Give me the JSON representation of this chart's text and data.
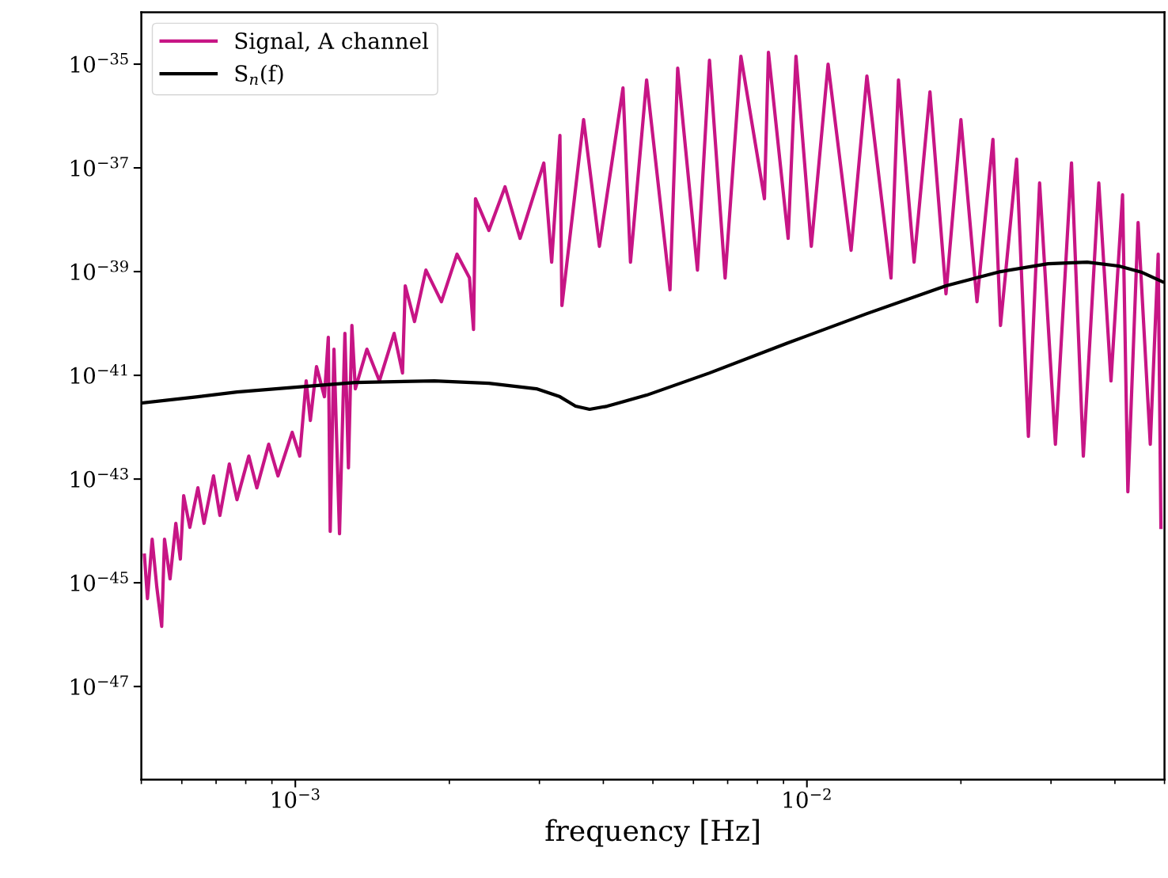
{
  "chart_data": {
    "type": "line",
    "xlabel": "frequency [Hz]",
    "log": "xy",
    "xlim": [
      0.0005,
      0.05
    ],
    "ylim": [
      1.6e-49,
      1e-34
    ],
    "xticks": [
      {
        "value": 0.001,
        "label": "10$^{−3}$"
      },
      {
        "value": 0.01,
        "label": "10$^{−2}$"
      }
    ],
    "yticks": [
      {
        "value": 1e-47,
        "label": "10$^{−47}$"
      },
      {
        "value": 1e-45,
        "label": "10$^{−45}$"
      },
      {
        "value": 1e-43,
        "label": "10$^{−43}$"
      },
      {
        "value": 1e-41,
        "label": "10$^{−41}$"
      },
      {
        "value": 1e-39,
        "label": "10$^{−39}$"
      },
      {
        "value": 1e-37,
        "label": "10$^{−37}$"
      },
      {
        "value": 1e-35,
        "label": "10$^{−35}$"
      }
    ],
    "legend": "top left",
    "marker": "none",
    "line_style": "solid",
    "series": [
      {
        "name": "Signal, A channel",
        "color": "#c71585",
        "x": [
          0.000507,
          0.000514,
          0.000525,
          0.000536,
          0.000548,
          0.000555,
          0.000569,
          0.000584,
          0.000596,
          0.000605,
          0.000622,
          0.000645,
          0.000663,
          0.000692,
          0.000712,
          0.000743,
          0.000769,
          0.000811,
          0.000841,
          0.000887,
          0.000925,
          0.000986,
          0.00102,
          0.00105,
          0.00107,
          0.0011,
          0.00114,
          0.00116,
          0.00117,
          0.00119,
          0.00122,
          0.00125,
          0.00127,
          0.00129,
          0.00131,
          0.00138,
          0.00146,
          0.00156,
          0.00162,
          0.00164,
          0.00171,
          0.0018,
          0.00193,
          0.00207,
          0.00219,
          0.00223,
          0.00225,
          0.00239,
          0.00257,
          0.00275,
          0.00306,
          0.00317,
          0.00329,
          0.00332,
          0.00366,
          0.00393,
          0.00437,
          0.00452,
          0.00486,
          0.0054,
          0.00559,
          0.00611,
          0.00645,
          0.00692,
          0.00743,
          0.00826,
          0.00841,
          0.00919,
          0.00952,
          0.0102,
          0.011,
          0.0122,
          0.0131,
          0.0146,
          0.0151,
          0.0162,
          0.0174,
          0.0187,
          0.02,
          0.0215,
          0.0231,
          0.0239,
          0.0257,
          0.0271,
          0.0285,
          0.0306,
          0.0329,
          0.0347,
          0.0372,
          0.0393,
          0.0414,
          0.0424,
          0.0444,
          0.0469,
          0.0486,
          0.0492
        ],
        "values": [
          3.42e-45,
          4.95e-46,
          6.92e-45,
          8.39e-46,
          1.45e-46,
          6.92e-45,
          1.19e-45,
          1.4e-44,
          2.87e-45,
          4.78e-44,
          1.17e-44,
          6.79e-44,
          1.4e-44,
          1.15e-43,
          1.99e-44,
          1.95e-43,
          4.01e-44,
          2.77e-43,
          6.79e-44,
          4.7e-43,
          1.15e-43,
          7.96e-43,
          2.77e-43,
          7.82e-42,
          1.35e-42,
          1.47e-41,
          3.87e-42,
          5.41e-41,
          9.82e-45,
          3.19e-41,
          8.85e-45,
          6.44e-41,
          1.64e-43,
          9.16e-41,
          5.5e-42,
          3.19e-41,
          7.82e-42,
          6.44e-41,
          1.11e-41,
          5.31e-40,
          1.09e-40,
          1.07e-39,
          2.63e-40,
          2.17e-39,
          7.55e-40,
          7.67e-41,
          2.54e-38,
          6.22e-39,
          4.31e-38,
          4.38e-39,
          1.24e-37,
          1.52e-39,
          4.23e-37,
          2.21e-40,
          8.53e-37,
          3.08e-39,
          3.48e-36,
          1.52e-39,
          4.95e-36,
          4.46e-40,
          8.39e-36,
          1.07e-39,
          1.19e-35,
          7.55e-40,
          1.42e-35,
          2.54e-38,
          1.69e-35,
          4.38e-39,
          1.42e-35,
          3.08e-39,
          1e-35,
          2.58e-39,
          5.9e-36,
          7.55e-40,
          4.95e-36,
          1.52e-39,
          2.92e-36,
          3.74e-40,
          8.53e-37,
          2.63e-40,
          3.55e-37,
          9.16e-41,
          1.47e-37,
          6.67e-43,
          5.13e-38,
          4.7e-43,
          1.24e-37,
          2.77e-43,
          5.13e-38,
          7.82e-42,
          3.03e-38,
          5.7e-44,
          8.85e-39,
          4.7e-43,
          2.17e-39,
          1.17e-44
        ]
      },
      {
        "name": "S$_{n}$(f)",
        "color": "#000000",
        "x": [
          0.0005,
          0.000645,
          0.000769,
          0.001,
          0.00131,
          0.00187,
          0.00239,
          0.00296,
          0.00329,
          0.00353,
          0.00376,
          0.00407,
          0.00486,
          0.00645,
          0.00919,
          0.0131,
          0.0187,
          0.0239,
          0.0296,
          0.0353,
          0.0407,
          0.0452,
          0.0496
        ],
        "values": [
          2.92e-42,
          3.87e-42,
          4.78e-42,
          5.9e-42,
          7.29e-42,
          7.82e-42,
          7.03e-42,
          5.5e-42,
          3.87e-42,
          2.54e-42,
          2.21e-42,
          2.54e-42,
          4.15e-42,
          1.11e-41,
          4.23e-41,
          1.55e-40,
          5.31e-40,
          1e-39,
          1.42e-39,
          1.52e-39,
          1.28e-39,
          9.66e-40,
          6.34e-40
        ]
      }
    ]
  }
}
